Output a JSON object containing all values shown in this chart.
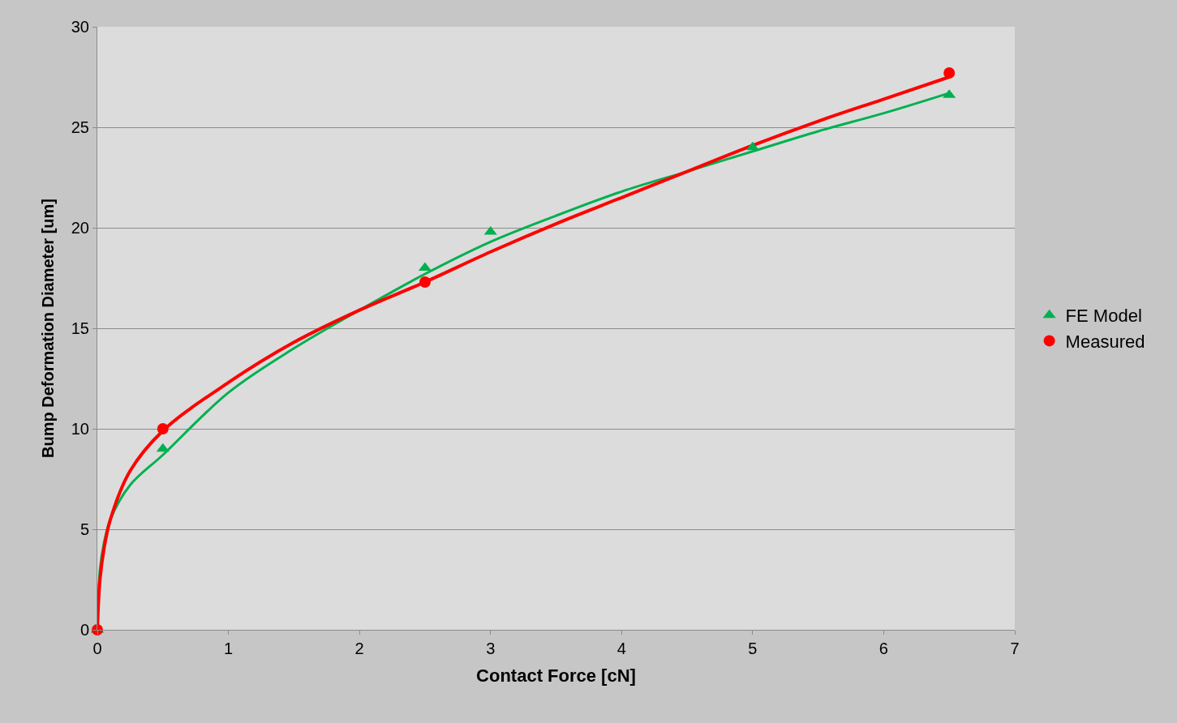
{
  "chart_data": {
    "type": "scatter",
    "xlabel": "Contact Force [cN]",
    "ylabel": "Bump Deformation Diameter [um]",
    "xlim": [
      0,
      7
    ],
    "xticks": [
      0,
      1,
      2,
      3,
      4,
      5,
      6,
      7
    ],
    "ylim": [
      0,
      30
    ],
    "yticks": [
      0,
      5,
      10,
      15,
      20,
      25,
      30
    ],
    "grid": "y",
    "legend": "right",
    "series": [
      {
        "type": "line",
        "color": "#00b050",
        "marker": "none",
        "x": [
          0,
          0.02,
          0.05,
          0.1,
          0.25,
          0.5,
          1,
          1.5,
          2,
          2.5,
          3,
          3.5,
          4,
          4.5,
          5,
          5.5,
          6,
          6.5
        ],
        "values": [
          0,
          3,
          4.3,
          5.5,
          7.2,
          8.7,
          11.8,
          14,
          15.9,
          17.7,
          19.3,
          20.6,
          21.8,
          22.8,
          23.8,
          24.8,
          25.7,
          26.7
        ]
      },
      {
        "type": "line",
        "color": "#ff0000",
        "marker": "none",
        "x": [
          0,
          0.02,
          0.05,
          0.1,
          0.25,
          0.5,
          1,
          1.5,
          2,
          2.5,
          3,
          3.5,
          4,
          4.5,
          5,
          5.5,
          6,
          6.5
        ],
        "values": [
          0,
          2.5,
          4,
          5.5,
          7.9,
          9.9,
          12.3,
          14.3,
          15.9,
          17.3,
          18.8,
          20.2,
          21.5,
          22.8,
          24.1,
          25.3,
          26.4,
          27.5
        ]
      },
      {
        "name": "FE Model",
        "color": "#00b050",
        "marker": "triangle",
        "x": [
          0,
          0.5,
          2.5,
          3,
          5,
          6.5
        ],
        "values": [
          0,
          9,
          18,
          19.8,
          24,
          26.6
        ]
      },
      {
        "name": "Measured",
        "color": "#ff0000",
        "marker": "circle",
        "x": [
          0,
          0.5,
          2.5,
          6.5
        ],
        "values": [
          0,
          10,
          17.3,
          27.7
        ]
      }
    ]
  }
}
